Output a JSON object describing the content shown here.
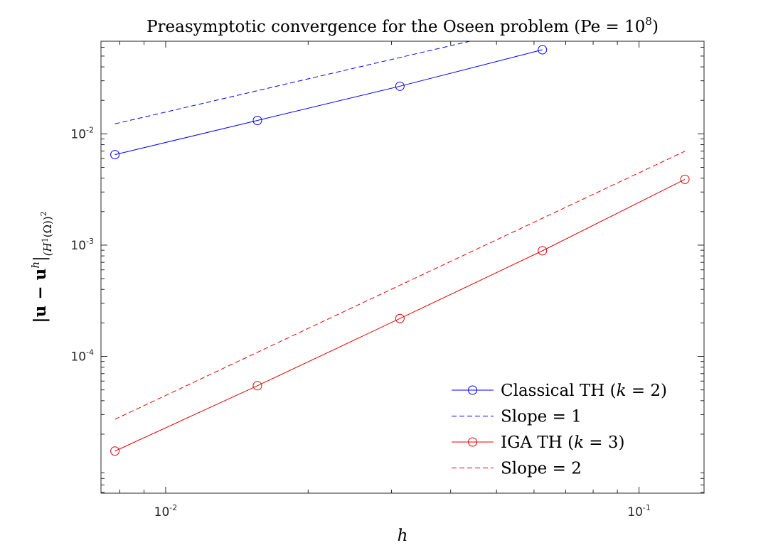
{
  "chart_data": {
    "type": "line",
    "title": "Preasymptotic convergence for the Oseen problem (Pe = 10",
    "title_exponent": "8",
    "title_suffix": ")",
    "xlabel": "h",
    "ylabel": "|u − u^h|_(H^1(Ω))^2",
    "ylabel_parts": {
      "main": "|u − u",
      "sup": "h",
      "close": "|",
      "sub": "(H",
      "sub_sup": "1",
      "sub_rest": "(Ω))",
      "sub_outer_sup": "2"
    },
    "xscale": "log",
    "yscale": "log",
    "xlim": [
      0.0073,
      0.1372
    ],
    "ylim": [
      5.9e-06,
      0.068
    ],
    "xticks": [
      {
        "value": 0.01,
        "base": "10",
        "exp": "-2"
      },
      {
        "value": 0.1,
        "base": "10",
        "exp": "-1"
      }
    ],
    "yticks": [
      {
        "value": 0.0001,
        "base": "10",
        "exp": "-4"
      },
      {
        "value": 0.001,
        "base": "10",
        "exp": "-3"
      },
      {
        "value": 0.01,
        "base": "10",
        "exp": "-2"
      }
    ],
    "legend_position": "bottom-right",
    "series": [
      {
        "name": "Classical TH (k = 2)",
        "label_main": "Classical TH (",
        "label_var": "k",
        "label_rest": " = 2)",
        "color": "#0000ff",
        "style": "solid",
        "marker": "circle",
        "x": [
          0.0078125,
          0.015625,
          0.03125,
          0.0625
        ],
        "y": [
          0.0065,
          0.0132,
          0.0268,
          0.057
        ]
      },
      {
        "name": "Slope = 1",
        "label_main": "Slope = 1",
        "label_var": "",
        "label_rest": "",
        "color": "#0000ff",
        "style": "dashed",
        "marker": "none",
        "x": [
          0.0078125,
          0.0449
        ],
        "y": [
          0.0123,
          0.0695
        ]
      },
      {
        "name": "IGA TH (k = 3)",
        "label_main": "IGA TH (",
        "label_var": "k",
        "label_rest": " = 3)",
        "color": "#e60000",
        "style": "solid",
        "marker": "circle",
        "x": [
          0.0078125,
          0.015625,
          0.03125,
          0.0625,
          0.125
        ],
        "y": [
          1.41e-05,
          5.45e-05,
          0.000219,
          0.00089,
          0.0039
        ]
      },
      {
        "name": "Slope = 2",
        "label_main": "Slope = 2",
        "label_var": "",
        "label_rest": "",
        "color": "#e60000",
        "style": "dashed",
        "marker": "none",
        "x": [
          0.0078125,
          0.125
        ],
        "y": [
          2.72e-05,
          0.00698
        ]
      }
    ]
  }
}
